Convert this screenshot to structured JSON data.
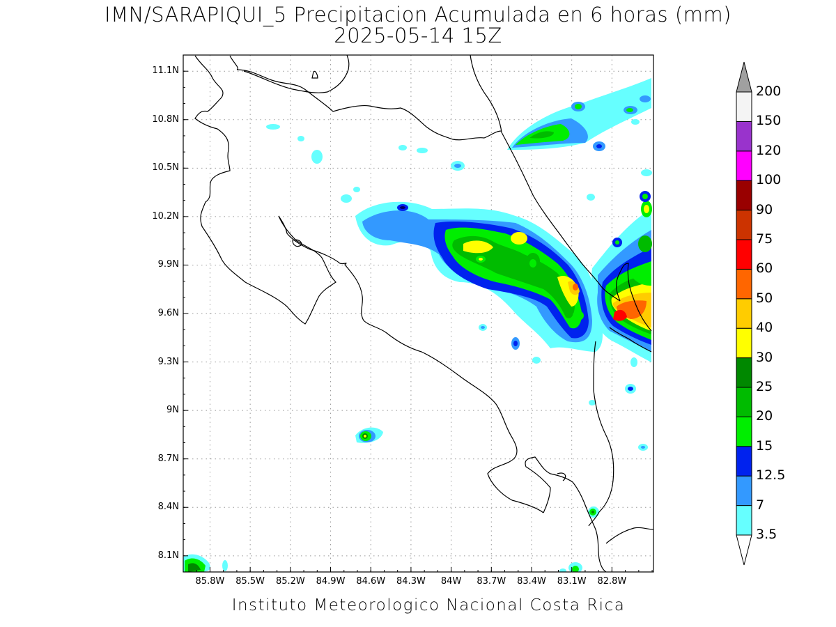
{
  "title": "IMN/SARAPIQUI_5 Precipitacion Acumulada en 6 horas (mm)",
  "subtitle": "2025-05-14 15Z",
  "footer": "Instituto Meteorologico Nacional Costa Rica",
  "map": {
    "lon_range": [
      -86.0,
      -82.49
    ],
    "lat_range": [
      8.0,
      11.2
    ],
    "x_ticks": [
      "85.8W",
      "85.5W",
      "85.2W",
      "84.9W",
      "84.6W",
      "84.3W",
      "84W",
      "83.7W",
      "83.4W",
      "83.1W",
      "82.8W"
    ],
    "x_tick_values": [
      -85.8,
      -85.5,
      -85.2,
      -84.9,
      -84.6,
      -84.3,
      -84.0,
      -83.7,
      -83.4,
      -83.1,
      -82.8
    ],
    "y_ticks": [
      "11.1N",
      "10.8N",
      "10.5N",
      "10.2N",
      "9.9N",
      "9.6N",
      "9.3N",
      "9N",
      "8.7N",
      "8.4N",
      "8.1N"
    ],
    "y_tick_values": [
      11.1,
      10.8,
      10.5,
      10.2,
      9.9,
      9.6,
      9.3,
      9.0,
      8.7,
      8.4,
      8.1
    ],
    "grid": "dotted"
  },
  "colorbar": {
    "levels": [
      "3.5",
      "7",
      "12.5",
      "15",
      "20",
      "25",
      "30",
      "40",
      "50",
      "60",
      "75",
      "90",
      "100",
      "120",
      "150",
      "200"
    ],
    "colors": [
      "#ffffff",
      "#66ffff",
      "#3399ff",
      "#0022ee",
      "#00ee00",
      "#00bb00",
      "#008800",
      "#ffff00",
      "#ffcc00",
      "#ff6600",
      "#ff0000",
      "#cc3300",
      "#990000",
      "#ff00ff",
      "#9933cc",
      "#f4f4f4"
    ],
    "over_color": "#a0a0a0",
    "under_color": "#ffffff"
  }
}
